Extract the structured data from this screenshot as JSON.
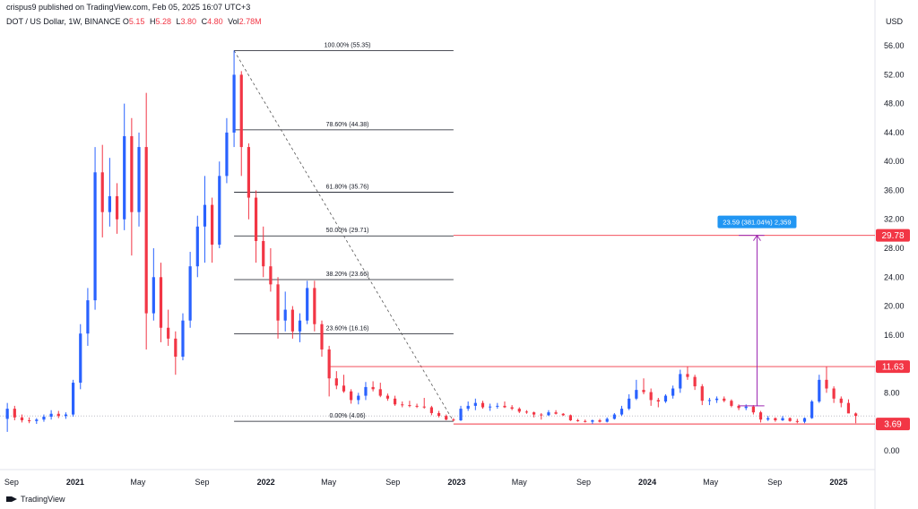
{
  "header": {
    "publisher_line": "crispus9 published on TradingView.com, Feb 05, 2025 16:07 UTC+3",
    "symbol": "DOT / US Dollar, 1W, BINANCE",
    "ohlc": [
      {
        "label": "O",
        "value": "5.15"
      },
      {
        "label": "H",
        "value": "5.28"
      },
      {
        "label": "L",
        "value": "3.80"
      },
      {
        "label": "C",
        "value": "4.80"
      },
      {
        "label": "Vol",
        "value": "2.78M"
      }
    ],
    "currency": "USD"
  },
  "branding": {
    "text": "TradingView"
  },
  "colors": {
    "up": "#2962ff",
    "down": "#f23645",
    "fib": "#131722",
    "level": "#f23645",
    "measure": "#9c27b0",
    "measure_label": "#2196f3"
  },
  "chart_data": {
    "type": "candlestick",
    "title": "DOT / US Dollar, 1W, BINANCE",
    "ylim": [
      -1.5,
      58
    ],
    "y_ticks": [
      "56.00",
      "52.00",
      "48.00",
      "44.00",
      "40.00",
      "36.00",
      "32.00",
      "28.00",
      "24.00",
      "20.00",
      "16.00",
      "12.00",
      "8.00",
      "4.00",
      "0.00"
    ],
    "y_tick_values": [
      56,
      52,
      48,
      44,
      40,
      36,
      32,
      28,
      24,
      20,
      16,
      12,
      8,
      4,
      0
    ],
    "x_ticks": [
      {
        "label": "Sep",
        "date": "2020-09-01",
        "bold": false
      },
      {
        "label": "2021",
        "date": "2021-01-01",
        "bold": true
      },
      {
        "label": "May",
        "date": "2021-05-01",
        "bold": false
      },
      {
        "label": "Sep",
        "date": "2021-09-01",
        "bold": false
      },
      {
        "label": "2022",
        "date": "2022-01-01",
        "bold": true
      },
      {
        "label": "May",
        "date": "2022-05-01",
        "bold": false
      },
      {
        "label": "Sep",
        "date": "2022-09-01",
        "bold": false
      },
      {
        "label": "2023",
        "date": "2023-01-01",
        "bold": true
      },
      {
        "label": "May",
        "date": "2023-05-01",
        "bold": false
      },
      {
        "label": "Sep",
        "date": "2023-09-01",
        "bold": false
      },
      {
        "label": "2024",
        "date": "2024-01-01",
        "bold": true
      },
      {
        "label": "May",
        "date": "2024-05-01",
        "bold": false
      },
      {
        "label": "Sep",
        "date": "2024-09-01",
        "bold": false
      },
      {
        "label": "2025",
        "date": "2025-01-01",
        "bold": true
      }
    ],
    "x_range": [
      "2020-08-10",
      "2025-03-10"
    ],
    "candles": [
      {
        "date": "2020-08-24",
        "o": 4.4,
        "h": 6.6,
        "l": 2.6,
        "c": 5.8
      },
      {
        "date": "2020-09-07",
        "o": 5.8,
        "h": 6.2,
        "l": 4.2,
        "c": 4.6
      },
      {
        "date": "2020-09-21",
        "o": 4.6,
        "h": 5.0,
        "l": 3.9,
        "c": 4.2
      },
      {
        "date": "2020-10-05",
        "o": 4.2,
        "h": 4.6,
        "l": 3.8,
        "c": 4.1
      },
      {
        "date": "2020-10-19",
        "o": 4.1,
        "h": 4.5,
        "l": 3.7,
        "c": 4.3
      },
      {
        "date": "2020-11-02",
        "o": 4.3,
        "h": 5.0,
        "l": 4.0,
        "c": 4.7
      },
      {
        "date": "2020-11-16",
        "o": 4.7,
        "h": 5.6,
        "l": 4.3,
        "c": 5.1
      },
      {
        "date": "2020-11-30",
        "o": 5.1,
        "h": 5.5,
        "l": 4.5,
        "c": 4.8
      },
      {
        "date": "2020-12-14",
        "o": 4.8,
        "h": 5.3,
        "l": 4.4,
        "c": 5.0
      },
      {
        "date": "2020-12-28",
        "o": 5.0,
        "h": 9.8,
        "l": 4.7,
        "c": 9.4
      },
      {
        "date": "2021-01-11",
        "o": 9.4,
        "h": 17.5,
        "l": 8.5,
        "c": 16.2
      },
      {
        "date": "2021-01-25",
        "o": 16.2,
        "h": 22.5,
        "l": 14.5,
        "c": 20.8
      },
      {
        "date": "2021-02-08",
        "o": 20.8,
        "h": 42.0,
        "l": 19.5,
        "c": 38.5
      },
      {
        "date": "2021-02-22",
        "o": 38.5,
        "h": 42.3,
        "l": 29.5,
        "c": 33.0
      },
      {
        "date": "2021-03-08",
        "o": 33.0,
        "h": 40.5,
        "l": 31.0,
        "c": 35.2
      },
      {
        "date": "2021-03-22",
        "o": 35.2,
        "h": 37.0,
        "l": 30.0,
        "c": 32.0
      },
      {
        "date": "2021-04-05",
        "o": 32.0,
        "h": 48.0,
        "l": 30.5,
        "c": 43.5
      },
      {
        "date": "2021-04-19",
        "o": 43.5,
        "h": 46.0,
        "l": 27.0,
        "c": 33.0
      },
      {
        "date": "2021-05-03",
        "o": 33.0,
        "h": 44.0,
        "l": 31.0,
        "c": 42.0
      },
      {
        "date": "2021-05-17",
        "o": 42.0,
        "h": 49.5,
        "l": 14.0,
        "c": 19.0
      },
      {
        "date": "2021-05-31",
        "o": 19.0,
        "h": 28.0,
        "l": 18.0,
        "c": 24.0
      },
      {
        "date": "2021-06-14",
        "o": 24.0,
        "h": 26.0,
        "l": 15.0,
        "c": 17.0
      },
      {
        "date": "2021-06-28",
        "o": 17.0,
        "h": 19.5,
        "l": 14.5,
        "c": 15.5
      },
      {
        "date": "2021-07-12",
        "o": 15.5,
        "h": 16.5,
        "l": 10.5,
        "c": 13.0
      },
      {
        "date": "2021-07-26",
        "o": 13.0,
        "h": 19.0,
        "l": 12.5,
        "c": 18.0
      },
      {
        "date": "2021-08-09",
        "o": 18.0,
        "h": 27.5,
        "l": 17.0,
        "c": 25.5
      },
      {
        "date": "2021-08-23",
        "o": 25.5,
        "h": 32.5,
        "l": 24.0,
        "c": 31.0
      },
      {
        "date": "2021-09-06",
        "o": 31.0,
        "h": 38.0,
        "l": 26.0,
        "c": 34.0
      },
      {
        "date": "2021-09-20",
        "o": 34.0,
        "h": 35.0,
        "l": 26.0,
        "c": 28.5
      },
      {
        "date": "2021-10-04",
        "o": 28.5,
        "h": 40.0,
        "l": 28.0,
        "c": 38.0
      },
      {
        "date": "2021-10-18",
        "o": 38.0,
        "h": 46.0,
        "l": 37.0,
        "c": 44.0
      },
      {
        "date": "2021-11-01",
        "o": 44.0,
        "h": 55.35,
        "l": 42.0,
        "c": 52.0
      },
      {
        "date": "2021-11-15",
        "o": 52.0,
        "h": 52.5,
        "l": 38.0,
        "c": 42.0
      },
      {
        "date": "2021-11-29",
        "o": 42.0,
        "h": 42.5,
        "l": 32.0,
        "c": 35.0
      },
      {
        "date": "2021-12-13",
        "o": 35.0,
        "h": 36.0,
        "l": 26.0,
        "c": 29.0
      },
      {
        "date": "2021-12-27",
        "o": 29.0,
        "h": 31.0,
        "l": 24.0,
        "c": 25.5
      },
      {
        "date": "2022-01-10",
        "o": 25.5,
        "h": 28.0,
        "l": 22.0,
        "c": 23.0
      },
      {
        "date": "2022-01-24",
        "o": 23.0,
        "h": 24.0,
        "l": 15.5,
        "c": 18.0
      },
      {
        "date": "2022-02-07",
        "o": 18.0,
        "h": 22.0,
        "l": 16.5,
        "c": 19.5
      },
      {
        "date": "2022-02-21",
        "o": 19.5,
        "h": 20.0,
        "l": 15.5,
        "c": 16.5
      },
      {
        "date": "2022-03-07",
        "o": 16.5,
        "h": 19.0,
        "l": 15.0,
        "c": 18.0
      },
      {
        "date": "2022-03-21",
        "o": 18.0,
        "h": 23.5,
        "l": 17.5,
        "c": 22.5
      },
      {
        "date": "2022-04-04",
        "o": 22.5,
        "h": 23.5,
        "l": 16.5,
        "c": 17.5
      },
      {
        "date": "2022-04-18",
        "o": 17.5,
        "h": 18.0,
        "l": 13.0,
        "c": 14.0
      },
      {
        "date": "2022-05-02",
        "o": 14.0,
        "h": 14.5,
        "l": 7.5,
        "c": 10.0
      },
      {
        "date": "2022-05-16",
        "o": 10.0,
        "h": 11.0,
        "l": 8.5,
        "c": 9.0
      },
      {
        "date": "2022-05-30",
        "o": 9.0,
        "h": 10.5,
        "l": 8.0,
        "c": 8.2
      },
      {
        "date": "2022-06-13",
        "o": 8.2,
        "h": 8.5,
        "l": 6.5,
        "c": 7.0
      },
      {
        "date": "2022-06-27",
        "o": 7.0,
        "h": 8.0,
        "l": 6.4,
        "c": 7.6
      },
      {
        "date": "2022-07-11",
        "o": 7.6,
        "h": 9.5,
        "l": 7.0,
        "c": 8.8
      },
      {
        "date": "2022-07-25",
        "o": 8.8,
        "h": 9.6,
        "l": 8.2,
        "c": 8.5
      },
      {
        "date": "2022-08-08",
        "o": 8.5,
        "h": 9.4,
        "l": 7.4,
        "c": 7.6
      },
      {
        "date": "2022-08-22",
        "o": 7.6,
        "h": 7.9,
        "l": 6.9,
        "c": 7.2
      },
      {
        "date": "2022-09-05",
        "o": 7.2,
        "h": 7.6,
        "l": 6.2,
        "c": 6.4
      },
      {
        "date": "2022-09-19",
        "o": 6.4,
        "h": 6.8,
        "l": 6.0,
        "c": 6.3
      },
      {
        "date": "2022-10-03",
        "o": 6.3,
        "h": 6.9,
        "l": 6.0,
        "c": 6.2
      },
      {
        "date": "2022-10-17",
        "o": 6.2,
        "h": 6.5,
        "l": 5.9,
        "c": 6.1
      },
      {
        "date": "2022-10-31",
        "o": 6.1,
        "h": 7.3,
        "l": 5.8,
        "c": 6.0
      },
      {
        "date": "2022-11-14",
        "o": 6.0,
        "h": 6.2,
        "l": 4.9,
        "c": 5.2
      },
      {
        "date": "2022-11-28",
        "o": 5.2,
        "h": 5.5,
        "l": 4.6,
        "c": 4.8
      },
      {
        "date": "2022-12-12",
        "o": 4.8,
        "h": 5.0,
        "l": 4.2,
        "c": 4.3
      },
      {
        "date": "2022-12-26",
        "o": 4.3,
        "h": 4.5,
        "l": 4.06,
        "c": 4.2
      },
      {
        "date": "2023-01-09",
        "o": 4.2,
        "h": 6.2,
        "l": 4.1,
        "c": 5.8
      },
      {
        "date": "2023-01-23",
        "o": 5.8,
        "h": 6.8,
        "l": 5.5,
        "c": 6.2
      },
      {
        "date": "2023-02-06",
        "o": 6.2,
        "h": 7.2,
        "l": 5.6,
        "c": 6.6
      },
      {
        "date": "2023-02-20",
        "o": 6.6,
        "h": 6.9,
        "l": 5.8,
        "c": 6.0
      },
      {
        "date": "2023-03-06",
        "o": 6.0,
        "h": 6.5,
        "l": 5.5,
        "c": 6.1
      },
      {
        "date": "2023-03-20",
        "o": 6.1,
        "h": 6.6,
        "l": 5.8,
        "c": 6.2
      },
      {
        "date": "2023-04-03",
        "o": 6.2,
        "h": 6.8,
        "l": 5.9,
        "c": 6.0
      },
      {
        "date": "2023-04-17",
        "o": 6.0,
        "h": 6.3,
        "l": 5.6,
        "c": 5.8
      },
      {
        "date": "2023-05-01",
        "o": 5.8,
        "h": 6.0,
        "l": 5.2,
        "c": 5.4
      },
      {
        "date": "2023-05-15",
        "o": 5.4,
        "h": 5.6,
        "l": 5.1,
        "c": 5.3
      },
      {
        "date": "2023-05-29",
        "o": 5.3,
        "h": 5.4,
        "l": 4.6,
        "c": 5.0
      },
      {
        "date": "2023-06-12",
        "o": 5.0,
        "h": 5.2,
        "l": 4.3,
        "c": 4.9
      },
      {
        "date": "2023-06-26",
        "o": 4.9,
        "h": 5.6,
        "l": 4.8,
        "c": 5.3
      },
      {
        "date": "2023-07-10",
        "o": 5.3,
        "h": 5.6,
        "l": 5.0,
        "c": 5.1
      },
      {
        "date": "2023-07-24",
        "o": 5.1,
        "h": 5.2,
        "l": 4.8,
        "c": 4.9
      },
      {
        "date": "2023-08-07",
        "o": 4.9,
        "h": 5.0,
        "l": 4.1,
        "c": 4.2
      },
      {
        "date": "2023-08-21",
        "o": 4.2,
        "h": 4.4,
        "l": 4.0,
        "c": 4.1
      },
      {
        "date": "2023-09-04",
        "o": 4.1,
        "h": 4.3,
        "l": 3.9,
        "c": 4.0
      },
      {
        "date": "2023-09-18",
        "o": 4.0,
        "h": 4.3,
        "l": 3.7,
        "c": 4.2
      },
      {
        "date": "2023-10-02",
        "o": 4.2,
        "h": 4.4,
        "l": 3.9,
        "c": 4.0
      },
      {
        "date": "2023-10-16",
        "o": 4.0,
        "h": 4.6,
        "l": 3.9,
        "c": 4.4
      },
      {
        "date": "2023-10-30",
        "o": 4.4,
        "h": 5.2,
        "l": 4.3,
        "c": 5.0
      },
      {
        "date": "2023-11-13",
        "o": 5.0,
        "h": 6.2,
        "l": 4.8,
        "c": 5.8
      },
      {
        "date": "2023-11-27",
        "o": 5.8,
        "h": 7.8,
        "l": 5.6,
        "c": 7.2
      },
      {
        "date": "2023-12-11",
        "o": 7.2,
        "h": 9.8,
        "l": 7.0,
        "c": 8.4
      },
      {
        "date": "2023-12-25",
        "o": 8.4,
        "h": 10.0,
        "l": 7.8,
        "c": 8.1
      },
      {
        "date": "2024-01-08",
        "o": 8.1,
        "h": 8.6,
        "l": 6.2,
        "c": 7.0
      },
      {
        "date": "2024-01-22",
        "o": 7.0,
        "h": 7.3,
        "l": 6.0,
        "c": 6.8
      },
      {
        "date": "2024-02-05",
        "o": 6.8,
        "h": 7.8,
        "l": 6.6,
        "c": 7.6
      },
      {
        "date": "2024-02-19",
        "o": 7.6,
        "h": 9.0,
        "l": 7.2,
        "c": 8.6
      },
      {
        "date": "2024-03-04",
        "o": 8.6,
        "h": 11.2,
        "l": 8.0,
        "c": 10.6
      },
      {
        "date": "2024-03-18",
        "o": 10.6,
        "h": 11.63,
        "l": 9.8,
        "c": 10.2
      },
      {
        "date": "2024-04-01",
        "o": 10.2,
        "h": 10.5,
        "l": 8.4,
        "c": 8.9
      },
      {
        "date": "2024-04-15",
        "o": 8.9,
        "h": 9.2,
        "l": 6.3,
        "c": 6.9
      },
      {
        "date": "2024-04-29",
        "o": 6.9,
        "h": 7.3,
        "l": 6.3,
        "c": 7.0
      },
      {
        "date": "2024-05-13",
        "o": 7.0,
        "h": 7.5,
        "l": 6.6,
        "c": 7.2
      },
      {
        "date": "2024-05-27",
        "o": 7.2,
        "h": 7.5,
        "l": 6.7,
        "c": 6.9
      },
      {
        "date": "2024-06-10",
        "o": 6.9,
        "h": 7.1,
        "l": 6.0,
        "c": 6.2
      },
      {
        "date": "2024-06-24",
        "o": 6.2,
        "h": 6.4,
        "l": 5.6,
        "c": 5.9
      },
      {
        "date": "2024-07-08",
        "o": 5.9,
        "h": 6.4,
        "l": 5.6,
        "c": 6.1
      },
      {
        "date": "2024-07-22",
        "o": 6.1,
        "h": 6.3,
        "l": 5.0,
        "c": 5.3
      },
      {
        "date": "2024-08-05",
        "o": 5.3,
        "h": 5.5,
        "l": 3.9,
        "c": 4.3
      },
      {
        "date": "2024-08-19",
        "o": 4.3,
        "h": 4.8,
        "l": 4.1,
        "c": 4.5
      },
      {
        "date": "2024-09-02",
        "o": 4.5,
        "h": 4.6,
        "l": 4.0,
        "c": 4.2
      },
      {
        "date": "2024-09-16",
        "o": 4.2,
        "h": 4.8,
        "l": 4.1,
        "c": 4.5
      },
      {
        "date": "2024-09-30",
        "o": 4.5,
        "h": 4.6,
        "l": 4.0,
        "c": 4.1
      },
      {
        "date": "2024-10-14",
        "o": 4.1,
        "h": 4.4,
        "l": 3.8,
        "c": 4.0
      },
      {
        "date": "2024-10-28",
        "o": 4.0,
        "h": 4.6,
        "l": 3.8,
        "c": 4.5
      },
      {
        "date": "2024-11-11",
        "o": 4.5,
        "h": 7.0,
        "l": 4.4,
        "c": 6.8
      },
      {
        "date": "2024-11-25",
        "o": 6.8,
        "h": 10.5,
        "l": 6.6,
        "c": 9.8
      },
      {
        "date": "2024-12-09",
        "o": 9.8,
        "h": 11.63,
        "l": 8.0,
        "c": 8.6
      },
      {
        "date": "2024-12-23",
        "o": 8.6,
        "h": 8.9,
        "l": 6.6,
        "c": 7.2
      },
      {
        "date": "2025-01-06",
        "o": 7.2,
        "h": 7.5,
        "l": 6.0,
        "c": 6.6
      },
      {
        "date": "2025-01-20",
        "o": 6.6,
        "h": 7.1,
        "l": 5.2,
        "c": 5.15
      },
      {
        "date": "2025-02-03",
        "o": 5.15,
        "h": 5.28,
        "l": 3.8,
        "c": 4.8
      }
    ],
    "fib": {
      "start_date": "2021-11-01",
      "end_date": "2022-12-26",
      "label_date": "2022-06-06",
      "levels": [
        {
          "label": "100.00% (55.35)",
          "value": 55.35
        },
        {
          "label": "78.60% (44.38)",
          "value": 44.38
        },
        {
          "label": "61.80% (35.76)",
          "value": 35.76
        },
        {
          "label": "50.00% (29.71)",
          "value": 29.71
        },
        {
          "label": "38.20% (23.66)",
          "value": 23.66
        },
        {
          "label": "23.60% (16.16)",
          "value": 16.16
        },
        {
          "label": "0.00% (4.06)",
          "value": 4.06
        }
      ],
      "trend_from": {
        "date": "2021-11-01",
        "value": 55.35
      },
      "trend_to": {
        "date": "2022-12-26",
        "value": 4.06
      }
    },
    "horizontal_levels": [
      {
        "value": 29.78,
        "label": "29.78",
        "from_date": "2022-12-26"
      },
      {
        "value": 11.63,
        "label": "11.63",
        "from_date": "2022-05-02"
      },
      {
        "value": 3.69,
        "label": "3.69",
        "from_date": "2022-12-26"
      }
    ],
    "reference_line": {
      "value": 4.8
    },
    "measure": {
      "date": "2024-07-29",
      "from_value": 6.2,
      "to_value": 29.78,
      "tick_from_date": "2024-06-24",
      "tick_to_date": "2024-08-12",
      "label": "23.59 (381.04%) 2,359"
    }
  }
}
